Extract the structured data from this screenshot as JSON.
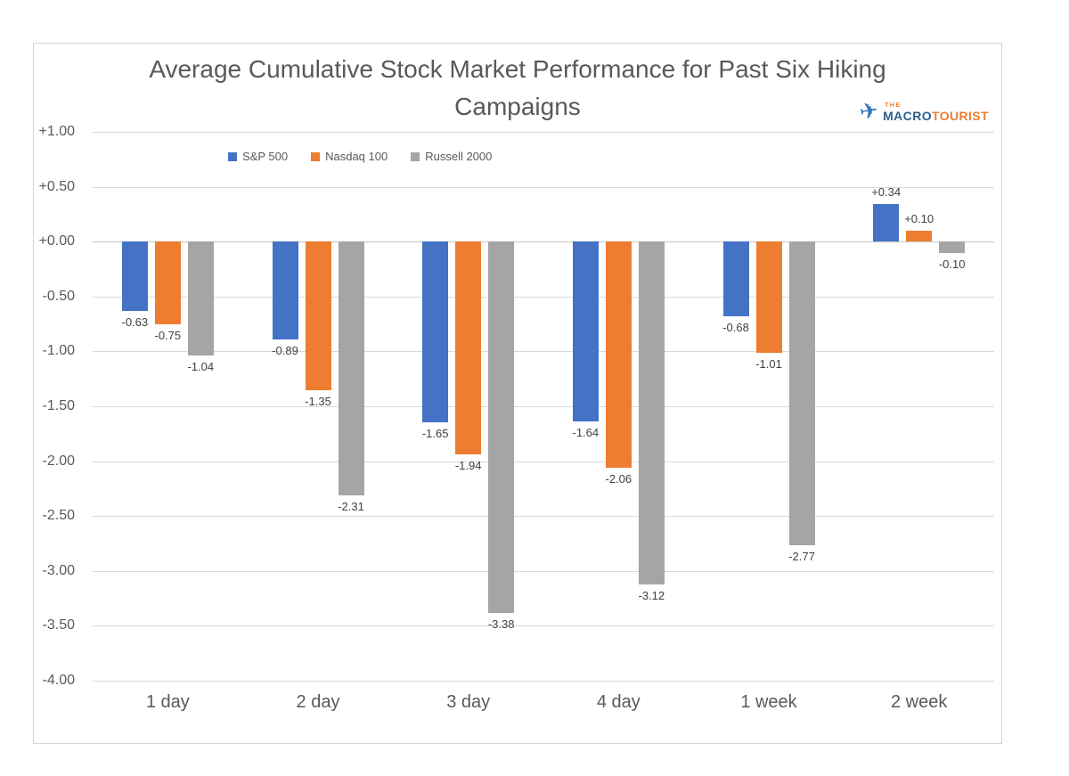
{
  "logo": {
    "plane_glyph": "✈",
    "the": "THE",
    "macro": "MACRO",
    "tourist": "TOURIST",
    "plane_color": "#2e75b6",
    "macro_color": "#2d5f8b",
    "tourist_color": "#ed7d31"
  },
  "chart_data": {
    "type": "bar",
    "title": "Average Cumulative Stock Market Performance for Past Six Hiking Campaigns",
    "xlabel": "",
    "ylabel": "",
    "categories": [
      "1 day",
      "2 day",
      "3 day",
      "4 day",
      "1 week",
      "2 week"
    ],
    "series": [
      {
        "name": "S&P 500",
        "color": "#4472c4",
        "values": [
          -0.63,
          -0.89,
          -1.65,
          -1.64,
          -0.68,
          0.34
        ],
        "labels": [
          "-0.63",
          "-0.89",
          "-1.65",
          "-1.64",
          "-0.68",
          "+0.34"
        ]
      },
      {
        "name": "Nasdaq 100",
        "color": "#ed7d31",
        "values": [
          -0.75,
          -1.35,
          -1.94,
          -2.06,
          -1.01,
          0.1
        ],
        "labels": [
          "-0.75",
          "-1.35",
          "-1.94",
          "-2.06",
          "-1.01",
          "+0.10"
        ]
      },
      {
        "name": "Russell 2000",
        "color": "#a5a5a5",
        "values": [
          -1.04,
          -2.31,
          -3.38,
          -3.12,
          -2.77,
          -0.1
        ],
        "labels": [
          "-1.04",
          "-2.31",
          "-3.38",
          "-3.12",
          "-2.77",
          "-0.10"
        ]
      }
    ],
    "ylim": [
      -4.0,
      1.0
    ],
    "ytick_step": 0.5,
    "ytick_labels": [
      "+1.00",
      "+0.50",
      "+0.00",
      "-0.50",
      "-1.00",
      "-1.50",
      "-2.00",
      "-2.50",
      "-3.00",
      "-3.50",
      "-4.00"
    ],
    "grid": true,
    "legend_position": "top-left-inside",
    "gridline_color": "#d9d9d9",
    "axis_text_color": "#595959",
    "data_label_color": "#404040"
  }
}
